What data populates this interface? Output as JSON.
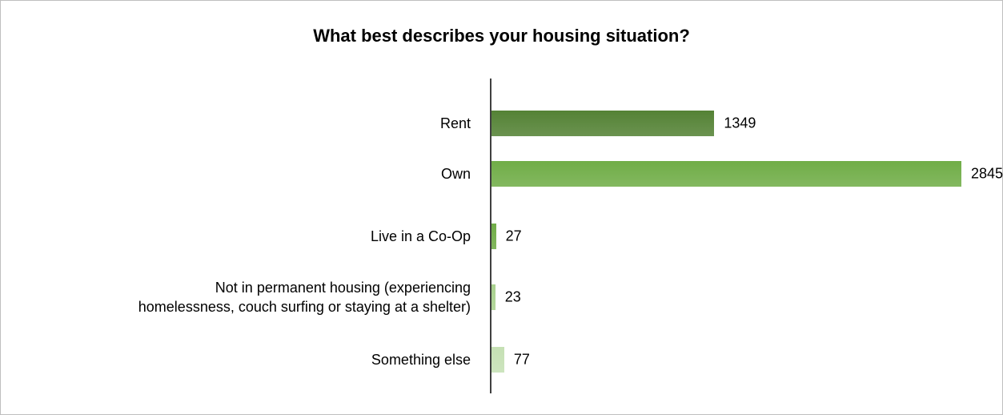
{
  "chart_data": {
    "type": "bar",
    "orientation": "horizontal",
    "title": "What best describes your housing situation?",
    "categories": [
      "Rent",
      "Own",
      "Live in a Co-Op",
      "Not in permanent housing (experiencing\nhomelessness, couch surfing or staying at a shelter)",
      "Something else"
    ],
    "values": [
      1349,
      2845,
      27,
      23,
      77
    ],
    "colors": [
      "#548235",
      "#70ad47",
      "#70ad47",
      "#a9d18e",
      "#c5e0b4"
    ]
  }
}
